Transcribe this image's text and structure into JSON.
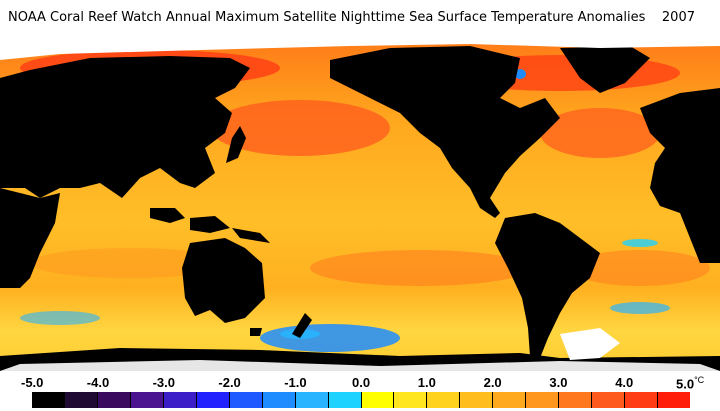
{
  "title": "NOAA Coral Reef Watch Annual Maximum Satellite Nighttime Sea Surface Temperature Anomalies",
  "year": "2007",
  "legend": {
    "unit": "°C",
    "ticks": [
      "-5.0",
      "-4.0",
      "-3.0",
      "-2.0",
      "-1.0",
      "0.0",
      "1.0",
      "2.0",
      "3.0",
      "4.0",
      "5.0"
    ],
    "colors": [
      "#000000",
      "#1e0a32",
      "#3a0a5e",
      "#4a1490",
      "#3c1ec8",
      "#2222ff",
      "#1e5aff",
      "#1e8cff",
      "#28b4ff",
      "#1ed2ff",
      "#ffff00",
      "#ffe61e",
      "#ffd21e",
      "#ffbe1e",
      "#ffaa1e",
      "#ff961e",
      "#ff781e",
      "#ff5a1e",
      "#ff3c14",
      "#ff1e0a"
    ]
  }
}
